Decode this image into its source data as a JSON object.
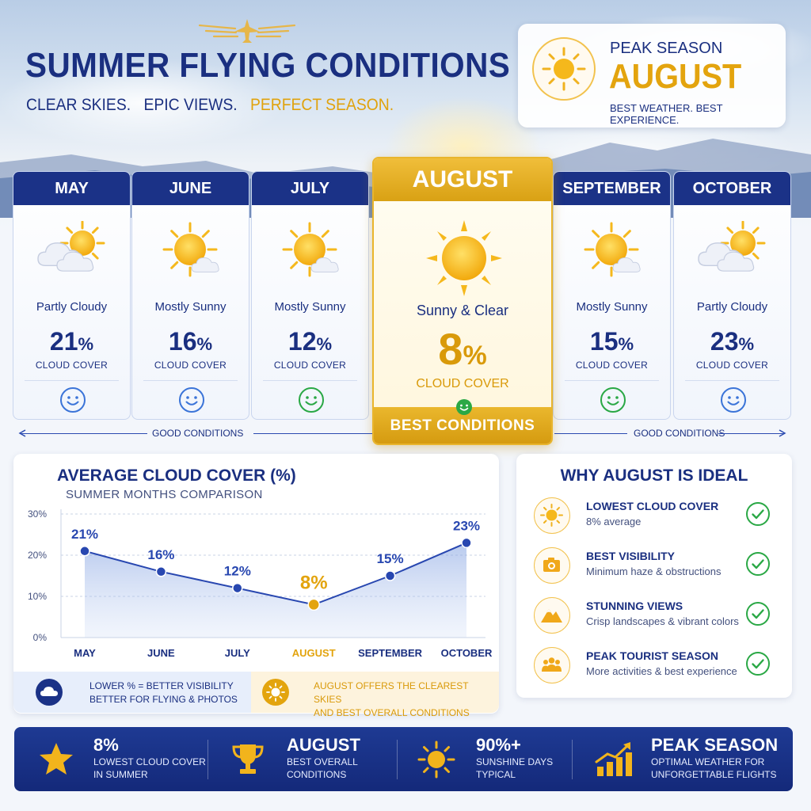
{
  "header": {
    "title": "SUMMER FLYING CONDITIONS",
    "subtitle_parts": [
      "CLEAR SKIES.",
      "EPIC VIEWS.",
      "PERFECT SEASON."
    ]
  },
  "peak": {
    "label": "PEAK SEASON",
    "month": "AUGUST",
    "sub": "BEST WEATHER.   BEST EXPERIENCE."
  },
  "months": [
    {
      "name": "MAY",
      "condition": "Partly Cloudy",
      "value": "21",
      "unit": "%",
      "cover_label": "CLOUD COVER",
      "icon": "partly-cloudy-icon",
      "smiley": "blue"
    },
    {
      "name": "JUNE",
      "condition": "Mostly Sunny",
      "value": "16",
      "unit": "%",
      "cover_label": "CLOUD COVER",
      "icon": "mostly-sunny-icon",
      "smiley": "blue"
    },
    {
      "name": "JULY",
      "condition": "Mostly Sunny",
      "value": "12",
      "unit": "%",
      "cover_label": "CLOUD COVER",
      "icon": "mostly-sunny-icon",
      "smiley": "green"
    },
    {
      "name": "SEPTEMBER",
      "condition": "Mostly Sunny",
      "value": "15",
      "unit": "%",
      "cover_label": "CLOUD COVER",
      "icon": "mostly-sunny-icon",
      "smiley": "green"
    },
    {
      "name": "OCTOBER",
      "condition": "Partly Cloudy",
      "value": "23",
      "unit": "%",
      "cover_label": "CLOUD COVER",
      "icon": "partly-cloudy-icon",
      "smiley": "blue"
    }
  ],
  "august": {
    "name": "AUGUST",
    "condition": "Sunny & Clear",
    "value": "8",
    "unit": "%",
    "cover_label": "CLOUD COVER",
    "best_label": "BEST CONDITIONS"
  },
  "good_left": "GOOD CONDITIONS",
  "good_right": "GOOD CONDITIONS",
  "chart_title": "AVERAGE CLOUD COVER (%)",
  "chart_subtitle": "SUMMER MONTHS COMPARISON",
  "chart_data": {
    "type": "line",
    "categories": [
      "MAY",
      "JUNE",
      "JULY",
      "AUGUST",
      "SEPTEMBER",
      "OCTOBER"
    ],
    "values": [
      21,
      16,
      12,
      8,
      15,
      23
    ],
    "data_labels": [
      "21%",
      "16%",
      "12%",
      "8%",
      "15%",
      "23%"
    ],
    "highlight_category": "AUGUST",
    "ylim": [
      0,
      30
    ],
    "yticks": [
      0,
      10,
      20,
      30
    ],
    "ytick_labels": [
      "0%",
      "10%",
      "20%",
      "30%"
    ],
    "grid": "horizontal dashed",
    "line_color": "#2847b0",
    "highlight_color": "#e3a40e"
  },
  "legend": {
    "left_line1": "LOWER % = BETTER VISIBILITY",
    "left_line2": "BETTER FOR FLYING & PHOTOS",
    "right_line1": "AUGUST OFFERS THE CLEAREST SKIES",
    "right_line2": "AND BEST OVERALL CONDITIONS"
  },
  "why": {
    "title": "WHY AUGUST IS IDEAL",
    "items": [
      {
        "head": "LOWEST CLOUD COVER",
        "desc": "8% average",
        "icon": "sun-icon"
      },
      {
        "head": "BEST VISIBILITY",
        "desc": "Minimum haze & obstructions",
        "icon": "camera-icon"
      },
      {
        "head": "STUNNING VIEWS",
        "desc": "Crisp landscapes & vibrant colors",
        "icon": "mountain-icon"
      },
      {
        "head": "PEAK TOURIST SEASON",
        "desc": "More activities & best experience",
        "icon": "people-icon"
      }
    ]
  },
  "stats": [
    {
      "big": "8%",
      "line1": "LOWEST CLOUD COVER",
      "line2": "IN SUMMER",
      "icon": "star-icon"
    },
    {
      "big": "AUGUST",
      "line1": "BEST OVERALL",
      "line2": "CONDITIONS",
      "icon": "trophy-icon"
    },
    {
      "big": "90%+",
      "line1": "SUNSHINE DAYS",
      "line2": "TYPICAL",
      "icon": "sun-icon"
    },
    {
      "big": "PEAK SEASON",
      "line1": "OPTIMAL WEATHER FOR",
      "line2": "UNFORGETTABLE FLIGHTS",
      "icon": "growth-chart-icon"
    }
  ],
  "colors": {
    "navy": "#1b3287",
    "gold": "#e3a40e",
    "green": "#2aa845",
    "blue_smiley": "#3b74d8"
  }
}
